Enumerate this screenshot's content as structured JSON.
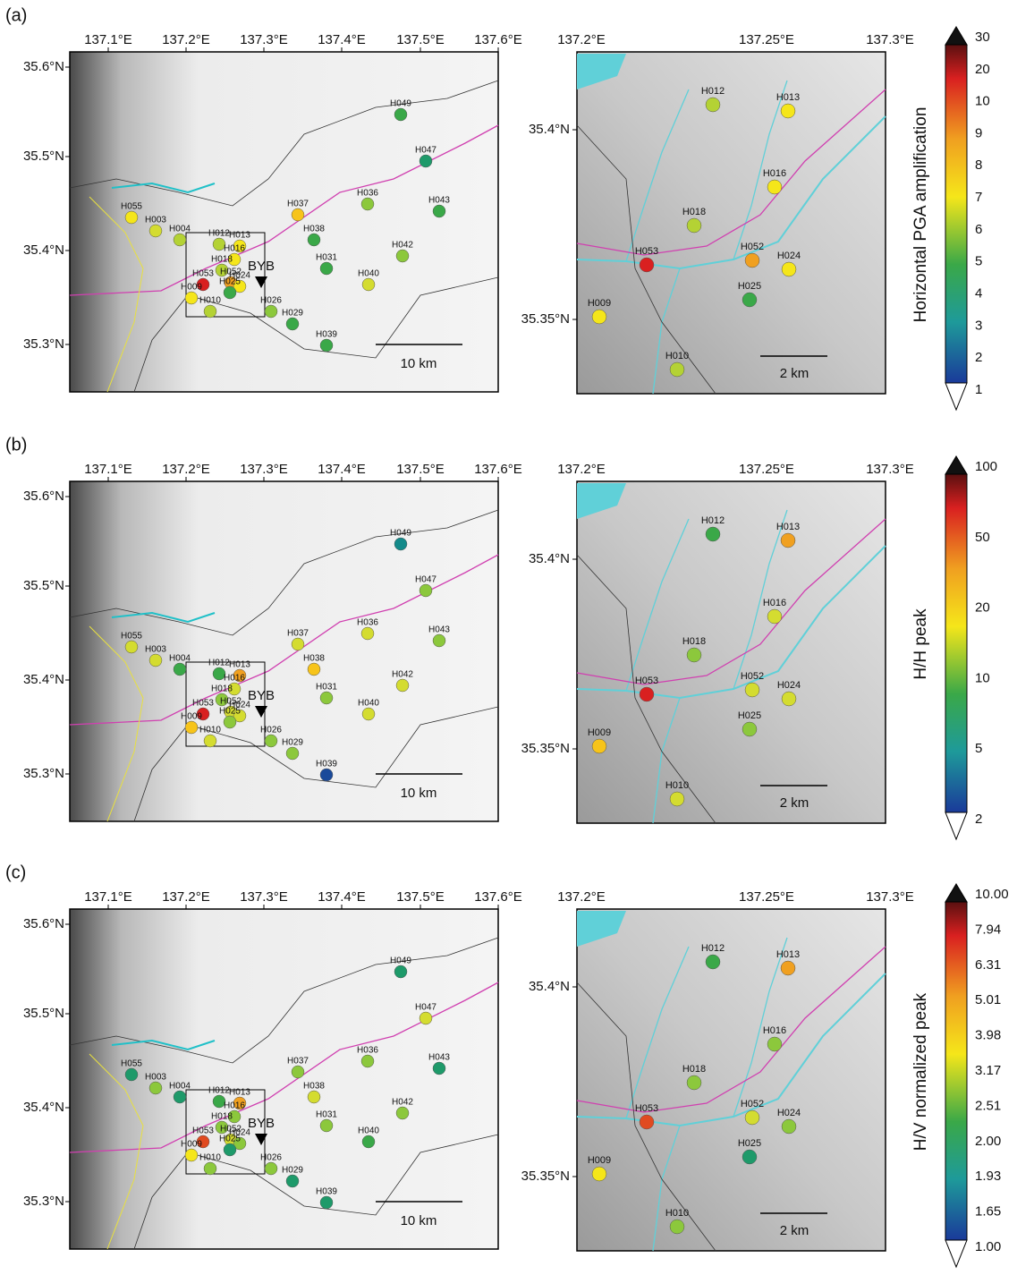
{
  "panels": [
    {
      "label": "(a)",
      "colorbar": {
        "title": "Horizontal PGA amplification",
        "ticks": [
          "30",
          "20",
          "10",
          "9",
          "8",
          "7",
          "6",
          "5",
          "4",
          "3",
          "2",
          "1"
        ]
      },
      "colors": [
        "#3aa848",
        "#1e9a6a",
        "#f5e61a",
        "#d4dc30",
        "#b4d234",
        "#f7c41a",
        "#8cc83c",
        "#3aa848",
        "#3aa848",
        "#b4d234",
        "#f5e61a",
        "#f5e61a",
        "#b4d234",
        "#f0a020",
        "#f5e61a",
        "#d92020",
        "#f5e61a",
        "#b4d234",
        "#3aa848",
        "#8cc83c",
        "#3aa848",
        "#3aa848",
        "#8cc83c",
        "#d4dc30",
        "#3aa848"
      ]
    },
    {
      "label": "(b)",
      "colorbar": {
        "title": "H/H peak",
        "ticks": [
          "100",
          "50",
          "20",
          "10",
          "5",
          "2"
        ]
      },
      "colors": [
        "#138a8a",
        "#8cc83c",
        "#d4dc30",
        "#d4dc30",
        "#3aa848",
        "#d4dc30",
        "#d4dc30",
        "#8cc83c",
        "#f7c41a",
        "#3aa848",
        "#f0a020",
        "#d4dc30",
        "#8cc83c",
        "#d4dc30",
        "#d4dc30",
        "#d92020",
        "#f7c41a",
        "#d4dc30",
        "#8cc83c",
        "#8cc83c",
        "#8cc83c",
        "#8cc83c",
        "#d4dc30",
        "#d4dc30",
        "#1a4a9a"
      ]
    },
    {
      "label": "(c)",
      "colorbar": {
        "title": "H/V normalized peak",
        "ticks": [
          "10.00",
          "7.94",
          "6.31",
          "5.01",
          "3.98",
          "3.17",
          "2.51",
          "2.00",
          "1.93",
          "1.65",
          "1.00"
        ]
      },
      "colors": [
        "#1e9a6a",
        "#d4dc30",
        "#1e9a6a",
        "#8cc83c",
        "#1e9a6a",
        "#8cc83c",
        "#8cc83c",
        "#1e9a6a",
        "#d4dc30",
        "#3aa848",
        "#f0a020",
        "#8cc83c",
        "#8cc83c",
        "#d4dc30",
        "#8cc83c",
        "#e04a20",
        "#f5e61a",
        "#8cc83c",
        "#1e9a6a",
        "#8cc83c",
        "#1e9a6a",
        "#8cc83c",
        "#8cc83c",
        "#3aa848",
        "#1e9a6a"
      ]
    }
  ],
  "left_map": {
    "lon_ticks": [
      "137.1°E",
      "137.2°E",
      "137.3°E",
      "137.4°E",
      "137.5°E",
      "137.6°E"
    ],
    "lat_ticks": [
      "35.6°N",
      "35.5°N",
      "35.4°N",
      "35.3°N"
    ],
    "scale_label": "10 km",
    "marker_label": "BYB"
  },
  "right_map": {
    "lon_ticks": [
      "137.2°E",
      "137.25°E",
      "137.3°E"
    ],
    "lat_ticks": [
      "35.4°N",
      "35.35°N"
    ],
    "scale_label": "2 km"
  },
  "stations": [
    "H049",
    "H047",
    "H055",
    "H003",
    "H004",
    "H037",
    "H036",
    "H043",
    "H038",
    "H012",
    "H013",
    "H016",
    "H018",
    "H052",
    "H024",
    "H053",
    "H009",
    "H010",
    "H025",
    "H026",
    "H029",
    "H031",
    "H042",
    "H040",
    "H039"
  ]
}
